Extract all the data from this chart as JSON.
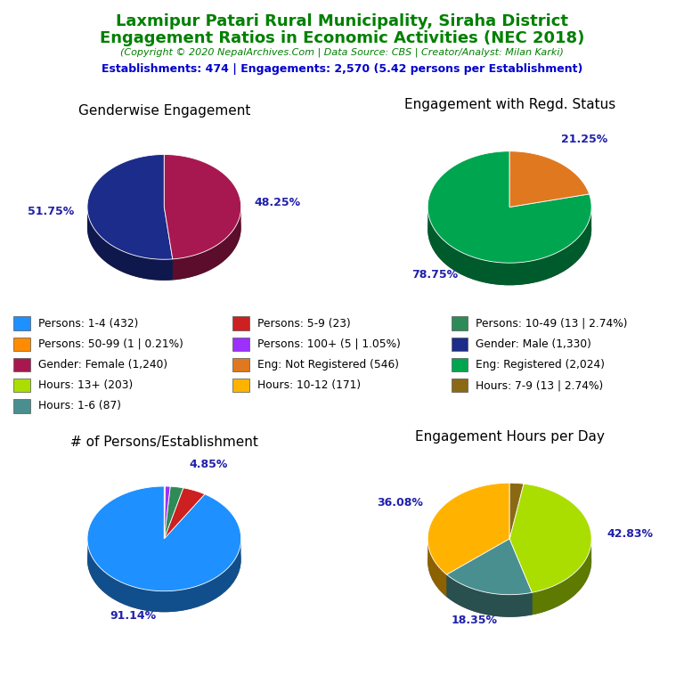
{
  "title_line1": "Laxmipur Patari Rural Municipality, Siraha District",
  "title_line2": "Engagement Ratios in Economic Activities (NEC 2018)",
  "subtitle": "(Copyright © 2020 NepalArchives.Com | Data Source: CBS | Creator/Analyst: Milan Karki)",
  "stats_line": "Establishments: 474 | Engagements: 2,570 (5.42 persons per Establishment)",
  "title_color": "#008000",
  "subtitle_color": "#008000",
  "stats_color": "#0000CD",
  "chart1_title": "Genderwise Engagement",
  "chart1_values": [
    51.75,
    48.25
  ],
  "chart1_colors": [
    "#1C2C8A",
    "#A81850"
  ],
  "chart1_labels": [
    "51.75%",
    "48.25%"
  ],
  "chart1_startangle": 90,
  "chart2_title": "Engagement with Regd. Status",
  "chart2_values": [
    78.75,
    21.25
  ],
  "chart2_colors": [
    "#00A550",
    "#E07820"
  ],
  "chart2_labels": [
    "78.75%",
    "21.25%"
  ],
  "chart2_startangle": 90,
  "chart3_title": "# of Persons/Establishment",
  "chart3_values": [
    91.14,
    4.85,
    2.74,
    1.05,
    0.21
  ],
  "chart3_colors": [
    "#1E90FF",
    "#CD2020",
    "#2E8B57",
    "#9B30FF",
    "#FF8C00"
  ],
  "chart3_labels": [
    "91.14%",
    "4.85%",
    "",
    "",
    ""
  ],
  "chart3_startangle": 90,
  "chart4_title": "Engagement Hours per Day",
  "chart4_values": [
    36.08,
    18.35,
    42.83,
    2.74
  ],
  "chart4_colors": [
    "#FFB300",
    "#4A8F8F",
    "#AADD00",
    "#8B6914"
  ],
  "chart4_labels": [
    "36.08%",
    "18.35%",
    "42.83%",
    ""
  ],
  "chart4_startangle": 90,
  "label_color": "#2020AA",
  "legend_items": [
    {
      "label": "Persons: 1-4 (432)",
      "color": "#1E90FF"
    },
    {
      "label": "Persons: 5-9 (23)",
      "color": "#CD2020"
    },
    {
      "label": "Persons: 10-49 (13 | 2.74%)",
      "color": "#2E8B57"
    },
    {
      "label": "Persons: 50-99 (1 | 0.21%)",
      "color": "#FF8C00"
    },
    {
      "label": "Persons: 100+ (5 | 1.05%)",
      "color": "#9B30FF"
    },
    {
      "label": "Gender: Male (1,330)",
      "color": "#1C2C8A"
    },
    {
      "label": "Gender: Female (1,240)",
      "color": "#A81850"
    },
    {
      "label": "Eng: Not Registered (546)",
      "color": "#E07820"
    },
    {
      "label": "Eng: Registered (2,024)",
      "color": "#00A550"
    },
    {
      "label": "Hours: 13+ (203)",
      "color": "#AADD00"
    },
    {
      "label": "Hours: 10-12 (171)",
      "color": "#FFB300"
    },
    {
      "label": "Hours: 7-9 (13 | 2.74%)",
      "color": "#8B6914"
    },
    {
      "label": "Hours: 1-6 (87)",
      "color": "#4A8F8F"
    }
  ]
}
